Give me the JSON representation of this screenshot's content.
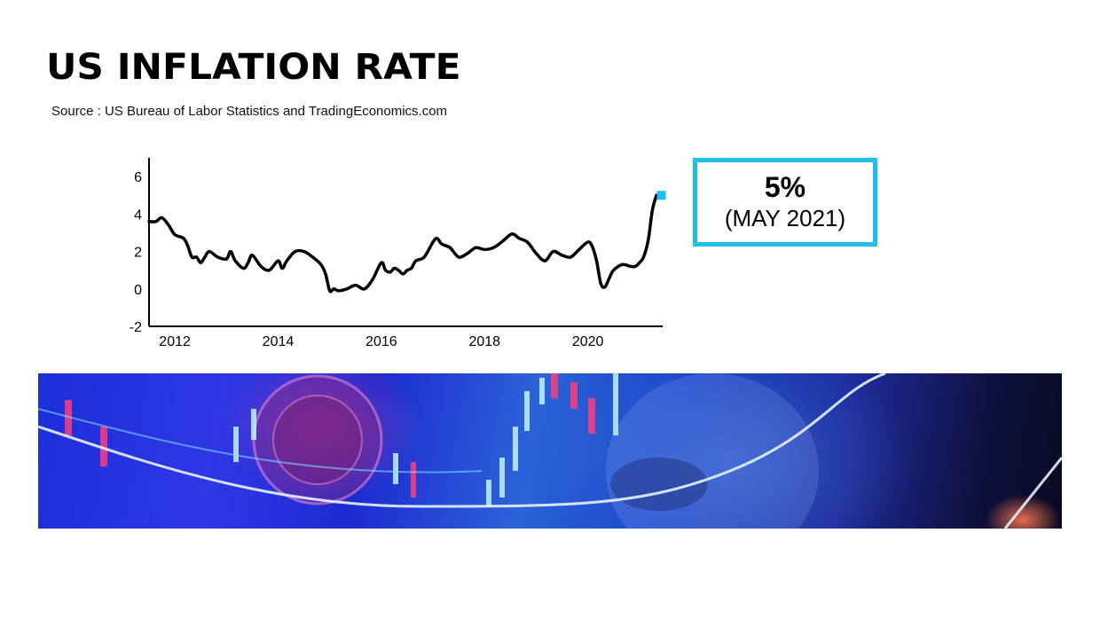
{
  "header": {
    "title": "US INFLATION RATE",
    "source": "Source : US Bureau of Labor Statistics and TradingEconomics.com"
  },
  "callout": {
    "value": "5%",
    "date": "(MAY 2021)",
    "border_color": "#1cc0ea"
  },
  "chart_data": {
    "type": "line",
    "title": "",
    "xlabel": "",
    "ylabel": "",
    "xlim": [
      2011.5,
      2021.45
    ],
    "ylim": [
      -2,
      7
    ],
    "x_ticks": [
      2012,
      2014,
      2016,
      2018,
      2020
    ],
    "x_tick_labels": [
      "2012",
      "2014",
      "2016",
      "2018",
      "2020"
    ],
    "y_ticks": [
      -2,
      0,
      2,
      4,
      6
    ],
    "y_tick_labels": [
      "-2",
      "0",
      "2",
      "4",
      "6"
    ],
    "grid": false,
    "line_color": "#000000",
    "marker_color": "#1cc0ea",
    "series": [
      {
        "x": [
          2011.5,
          2011.63,
          2011.75,
          2011.88,
          2012.0,
          2012.17,
          2012.25,
          2012.33,
          2012.42,
          2012.5,
          2012.58,
          2012.67,
          2012.83,
          2013.0,
          2013.08,
          2013.17,
          2013.33,
          2013.42,
          2013.5,
          2013.67,
          2013.83,
          2014.0,
          2014.08,
          2014.17,
          2014.33,
          2014.5,
          2014.67,
          2014.83,
          2014.92,
          2015.0,
          2015.08,
          2015.17,
          2015.33,
          2015.5,
          2015.67,
          2015.83,
          2016.0,
          2016.08,
          2016.17,
          2016.25,
          2016.33,
          2016.42,
          2016.5,
          2016.58,
          2016.67,
          2016.83,
          2017.0,
          2017.08,
          2017.17,
          2017.33,
          2017.5,
          2017.67,
          2017.83,
          2018.0,
          2018.17,
          2018.33,
          2018.5,
          2018.58,
          2018.67,
          2018.83,
          2019.0,
          2019.17,
          2019.33,
          2019.5,
          2019.67,
          2019.83,
          2020.0,
          2020.08,
          2020.17,
          2020.25,
          2020.33,
          2020.42,
          2020.5,
          2020.67,
          2020.83,
          2020.92,
          2021.0,
          2021.08,
          2021.17,
          2021.25,
          2021.33
        ],
        "y": [
          3.6,
          3.6,
          3.8,
          3.4,
          2.9,
          2.7,
          2.3,
          1.7,
          1.7,
          1.4,
          1.7,
          2.0,
          1.7,
          1.6,
          2.0,
          1.5,
          1.1,
          1.4,
          1.8,
          1.2,
          1.0,
          1.5,
          1.1,
          1.5,
          2.0,
          2.0,
          1.7,
          1.3,
          0.8,
          -0.1,
          0.0,
          -0.1,
          0.0,
          0.2,
          0.0,
          0.5,
          1.4,
          1.0,
          0.9,
          1.1,
          1.0,
          0.8,
          1.0,
          1.1,
          1.5,
          1.7,
          2.5,
          2.7,
          2.4,
          2.2,
          1.7,
          1.9,
          2.2,
          2.1,
          2.2,
          2.5,
          2.9,
          2.9,
          2.7,
          2.5,
          1.9,
          1.5,
          2.0,
          1.8,
          1.7,
          2.1,
          2.5,
          2.3,
          1.5,
          0.3,
          0.1,
          0.6,
          1.0,
          1.3,
          1.2,
          1.2,
          1.4,
          1.7,
          2.6,
          4.2,
          5.0
        ]
      }
    ],
    "highlight_point": {
      "x": 2021.33,
      "y": 5.0
    }
  },
  "banner": {
    "description_colors": [
      "#1b2fd9",
      "#2c63d8",
      "#0a0a22",
      "#ff4a8a",
      "#9fe8ff"
    ]
  }
}
